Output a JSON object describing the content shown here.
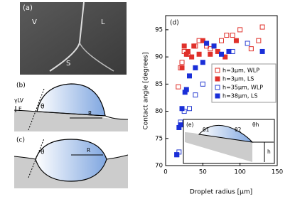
{
  "figure": {
    "panel_a": {
      "label": "(a)",
      "V": "V",
      "L": "L",
      "S": "S"
    },
    "panel_b": {
      "label": "(b)",
      "gamma": "γLV",
      "theta": "θ",
      "E": "E",
      "R": "R"
    },
    "panel_c": {
      "label": "(c)",
      "theta": "θ",
      "R": "R"
    },
    "panel_e": {
      "label": "(e)",
      "theta1": "θ1",
      "theta2": "θ2",
      "thetah": "θh",
      "h": "h"
    }
  },
  "chart_data": {
    "type": "scatter",
    "label": "(d)",
    "xlabel": "Droplet radius [µm]",
    "ylabel": "Contact angle [degrees]",
    "xlim": [
      0,
      150
    ],
    "ylim": [
      70,
      97.6
    ],
    "xticks": [
      0,
      50,
      100,
      150
    ],
    "yticks": [
      70,
      75,
      80,
      85,
      90,
      95
    ],
    "legend": "right",
    "series": [
      {
        "name": "h=3µm, WLP",
        "color": "#e0302a",
        "marker": "open",
        "x": [
          17,
          20,
          22,
          25,
          30,
          40,
          45,
          55,
          60,
          65,
          75,
          82,
          90,
          100,
          115,
          125,
          130
        ],
        "values": [
          84.5,
          88,
          89,
          91,
          90.5,
          92,
          93,
          92,
          91.5,
          92,
          93,
          94,
          94,
          95,
          91.5,
          93,
          95.5
        ]
      },
      {
        "name": "h=3µm, LS",
        "color": "#e0302a",
        "marker": "filled",
        "x": [
          22,
          25,
          28,
          30,
          35,
          38,
          45,
          50,
          60,
          70,
          80,
          95
        ],
        "values": [
          88,
          92,
          90.5,
          91,
          90,
          92,
          90.5,
          93,
          90.5,
          91,
          90,
          93
        ]
      },
      {
        "name": "h=35µm, WLP",
        "color": "#2a3fd0",
        "marker": "open",
        "x": [
          15,
          18,
          20,
          25,
          32,
          40,
          50,
          70,
          90,
          110
        ],
        "values": [
          72,
          72.5,
          78,
          80,
          80.5,
          83,
          85,
          88,
          91,
          92.5
        ]
      },
      {
        "name": "h=38µm, LS",
        "color": "#1a2fd8",
        "marker": "filled",
        "x": [
          15,
          18,
          20,
          22,
          26,
          28,
          32,
          40,
          50,
          55,
          65,
          75,
          85,
          130
        ],
        "values": [
          72,
          77,
          77.5,
          80.5,
          83.5,
          84,
          86.5,
          88,
          89,
          92.5,
          92,
          90.5,
          91,
          91
        ]
      }
    ]
  }
}
